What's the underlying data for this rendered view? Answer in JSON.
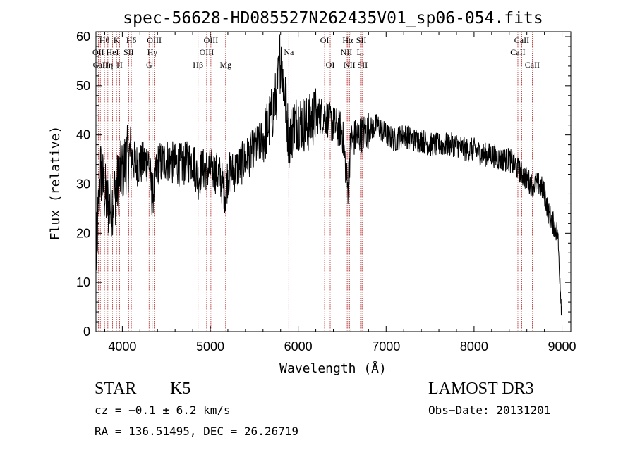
{
  "chart_data": {
    "type": "line",
    "title": "spec-56628-HD085527N262435V01_sp06-054.fits",
    "xlabel": "Wavelength (Å)",
    "ylabel": "Flux (relative)",
    "xlim": [
      3700,
      9100
    ],
    "ylim": [
      0,
      61
    ],
    "xticks": [
      4000,
      5000,
      6000,
      7000,
      8000,
      9000
    ],
    "yticks": [
      0,
      10,
      20,
      30,
      40,
      50,
      60
    ],
    "grid": false,
    "line_color": "#000000",
    "marker_color": "#b22222",
    "x": [
      3700,
      3750,
      3800,
      3850,
      3900,
      3950,
      4000,
      4050,
      4100,
      4150,
      4200,
      4300,
      4340,
      4400,
      4500,
      4600,
      4700,
      4800,
      4861,
      4900,
      5000,
      5100,
      5175,
      5200,
      5300,
      5400,
      5500,
      5600,
      5700,
      5750,
      5800,
      5850,
      5893,
      5950,
      6000,
      6100,
      6200,
      6300,
      6400,
      6500,
      6563,
      6600,
      6700,
      6800,
      6900,
      7000,
      7100,
      7200,
      7300,
      7400,
      7500,
      7600,
      7700,
      7800,
      7900,
      8000,
      8100,
      8200,
      8300,
      8400,
      8500,
      8550,
      8600,
      8650,
      8700,
      8750,
      8800,
      8850,
      8900,
      8950,
      9000
    ],
    "y": [
      14,
      33,
      28,
      25,
      27,
      30,
      33,
      35,
      36,
      34,
      34,
      35,
      27,
      34,
      35,
      34,
      34,
      35,
      31,
      33,
      33,
      32,
      28,
      32,
      33,
      35,
      37,
      39,
      44,
      48,
      55,
      48,
      39,
      42,
      43,
      42,
      44,
      44,
      42,
      41,
      29,
      39,
      40,
      41,
      42,
      40,
      39,
      40,
      39,
      39,
      38,
      38,
      38,
      38,
      37,
      37,
      36,
      36,
      35,
      35,
      33,
      32,
      31,
      30,
      30,
      30,
      28,
      24,
      22,
      20,
      3
    ],
    "lines": [
      {
        "label": "Hθ",
        "wl": 3797,
        "row": 0
      },
      {
        "label": "OII",
        "wl": 3727,
        "row": 1
      },
      {
        "label": "CaII",
        "wl": 3750,
        "row": 2
      },
      {
        "label": "K",
        "wl": 3934,
        "row": 0
      },
      {
        "label": "HeI",
        "wl": 3889,
        "row": 1
      },
      {
        "label": "Hη",
        "wl": 3835,
        "row": 2
      },
      {
        "label": "H",
        "wl": 3968,
        "row": 2
      },
      {
        "label": "SII",
        "wl": 4072,
        "row": 1
      },
      {
        "label": "Hδ",
        "wl": 4102,
        "row": 0
      },
      {
        "label": "OIII",
        "wl": 4363,
        "row": 0
      },
      {
        "label": "Hγ",
        "wl": 4340,
        "row": 1
      },
      {
        "label": "G",
        "wl": 4304,
        "row": 2
      },
      {
        "label": "Hβ",
        "wl": 4861,
        "row": 2
      },
      {
        "label": "OIII",
        "wl": 5007,
        "row": 0
      },
      {
        "label": "OIII",
        "wl": 4959,
        "row": 1
      },
      {
        "label": "Mg",
        "wl": 5175,
        "row": 2
      },
      {
        "label": "Na",
        "wl": 5893,
        "row": 1
      },
      {
        "label": "OI",
        "wl": 6300,
        "row": 0
      },
      {
        "label": "OI",
        "wl": 6364,
        "row": 2
      },
      {
        "label": "Hα",
        "wl": 6563,
        "row": 0
      },
      {
        "label": "NII",
        "wl": 6548,
        "row": 1
      },
      {
        "label": "NII",
        "wl": 6583,
        "row": 2
      },
      {
        "label": "SII",
        "wl": 6717,
        "row": 0
      },
      {
        "label": "Li",
        "wl": 6708,
        "row": 1
      },
      {
        "label": "SII",
        "wl": 6731,
        "row": 2
      },
      {
        "label": "CaII",
        "wl": 8542,
        "row": 0
      },
      {
        "label": "CaII",
        "wl": 8498,
        "row": 1
      },
      {
        "label": "CaII",
        "wl": 8662,
        "row": 2
      }
    ]
  },
  "info": {
    "class": "STAR",
    "subclass": "K5",
    "survey": "LAMOST DR3",
    "cz": "cz = −0.1 ± 6.2 km/s",
    "obs_date": "Obs−Date: 20131201",
    "radec": "RA = 136.51495, DEC =  26.26719"
  }
}
